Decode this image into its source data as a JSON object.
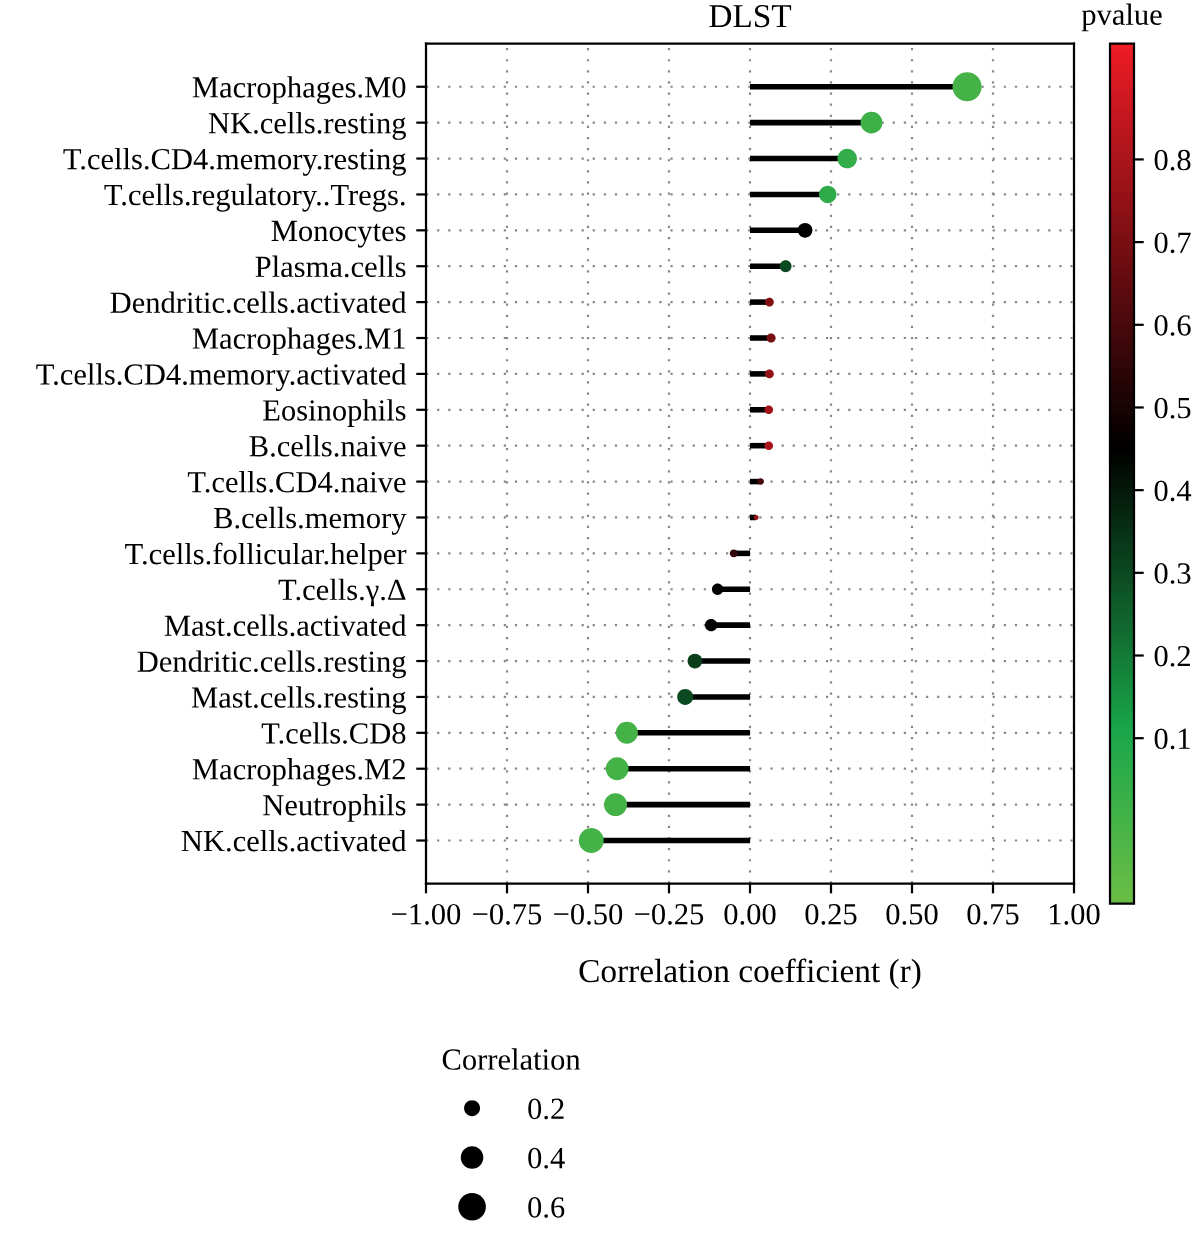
{
  "chart_data": {
    "type": "lollipop",
    "title": "DLST",
    "orientation": "horizontal",
    "xlabel": "Correlation coefficient (r)",
    "clabel": "pvalue",
    "legend_title": "Correlation",
    "categories": [
      "Macrophages.M0",
      "NK.cells.resting",
      "T.cells.CD4.memory.resting",
      "T.cells.regulatory..Tregs.",
      "Monocytes",
      "Plasma.cells",
      "Dendritic.cells.activated",
      "Macrophages.M1",
      "T.cells.CD4.memory.activated",
      "Eosinophils",
      "B.cells.naive",
      "T.cells.CD4.naive",
      "B.cells.memory",
      "T.cells.follicular.helper",
      "T.cells.γ.Δ",
      "Mast.cells.activated",
      "Dendritic.cells.resting",
      "Mast.cells.resting",
      "T.cells.CD8",
      "Macrophages.M2",
      "Neutrophils",
      "NK.cells.activated"
    ],
    "values": [
      0.67,
      0.375,
      0.3,
      0.24,
      0.17,
      0.11,
      0.06,
      0.065,
      0.06,
      0.058,
      0.058,
      0.033,
      0.019,
      -0.05,
      -0.1,
      -0.12,
      -0.17,
      -0.2,
      -0.38,
      -0.41,
      -0.415,
      -0.49
    ],
    "sizes": [
      0.67,
      0.375,
      0.3,
      0.24,
      0.17,
      0.11,
      0.06,
      0.065,
      0.06,
      0.058,
      0.058,
      0.033,
      0.019,
      0.05,
      0.1,
      0.12,
      0.17,
      0.2,
      0.38,
      0.41,
      0.415,
      0.49
    ],
    "size_legend": [
      0.2,
      0.4,
      0.6
    ],
    "cvalues": [
      0.0,
      0.02,
      0.05,
      0.06,
      0.45,
      0.3,
      0.72,
      0.7,
      0.75,
      0.78,
      0.8,
      0.6,
      0.75,
      0.55,
      0.45,
      0.45,
      0.32,
      0.3,
      0.0,
      0.0,
      0.0,
      0.0
    ],
    "clim": [
      -0.1,
      0.94
    ],
    "cticks": [
      0.1,
      0.2,
      0.3,
      0.4,
      0.5,
      0.6,
      0.7,
      0.8
    ],
    "xlim": [
      -1.0,
      1.0
    ],
    "xticks": [
      {
        "value": -1.0,
        "label": "−1.00"
      },
      {
        "value": -0.75,
        "label": "−0.75"
      },
      {
        "value": -0.5,
        "label": "−0.50"
      },
      {
        "value": -0.25,
        "label": "−0.25"
      },
      {
        "value": 0.0,
        "label": "0.00"
      },
      {
        "value": 0.25,
        "label": "0.25"
      },
      {
        "value": 0.5,
        "label": "0.50"
      },
      {
        "value": 0.75,
        "label": "0.75"
      },
      {
        "value": 1.0,
        "label": "1.00"
      }
    ],
    "grid": true,
    "marker": "circle"
  }
}
